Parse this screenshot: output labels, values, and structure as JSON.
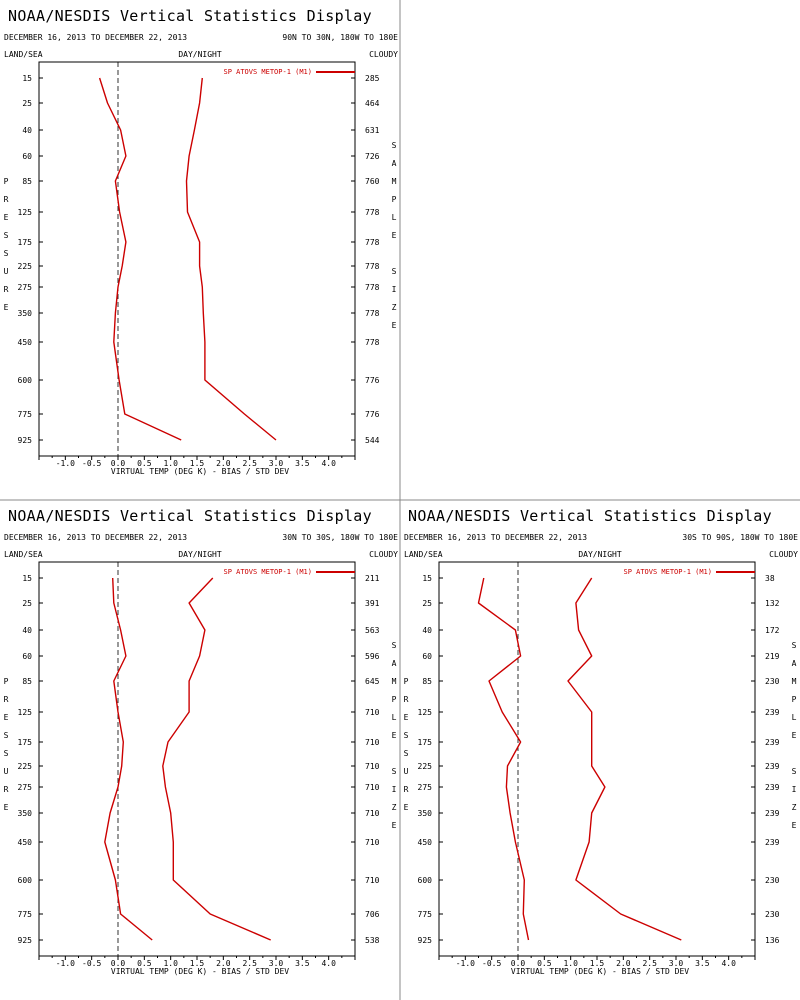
{
  "panels": [
    {
      "title": "NOAA/NESDIS Vertical Statistics Display",
      "date_range": "DECEMBER 16, 2013 TO DECEMBER 22, 2013",
      "region": "90N TO 30N, 180W TO 180E",
      "land_sea": "LAND/SEA",
      "day_night": "DAY/NIGHT",
      "cloudy": "CLOUDY",
      "y_axis_label": "PRESSURE",
      "right_axis_label": "SAMPLE SIZE",
      "legend": "SP ATOVS METOP-1 (M1)",
      "chart_data": {
        "type": "line",
        "xlabel": "VIRTUAL TEMP (DEG K) - BIAS / STD DEV",
        "ylabel": "PRESSURE",
        "xlim": [
          -1.5,
          4.5
        ],
        "xticks": [
          "-1.0",
          "-0.5",
          "0.0",
          "0.5",
          "1.0",
          "1.5",
          "2.0",
          "2.5",
          "3.0",
          "3.5",
          "4.0"
        ],
        "pressure_levels": [
          "15",
          "25",
          "40",
          "60",
          "85",
          "125",
          "175",
          "225",
          "275",
          "350",
          "450",
          "600",
          "775",
          "925"
        ],
        "sample_size": [
          "285",
          "464",
          "631",
          "726",
          "760",
          "778",
          "778",
          "778",
          "778",
          "778",
          "778",
          "776",
          "776",
          "544"
        ],
        "series": [
          {
            "name": "SP ATOVS METOP-1 (M1)",
            "stat": "bias",
            "values": [
              -0.35,
              -0.2,
              0.05,
              0.15,
              -0.05,
              0.03,
              0.15,
              0.08,
              0.0,
              -0.05,
              -0.08,
              0.02,
              0.13,
              1.2
            ]
          },
          {
            "name": "SP ATOVS METOP-1 (M1)",
            "stat": "std_dev",
            "values": [
              1.6,
              1.55,
              1.45,
              1.35,
              1.3,
              1.32,
              1.55,
              1.55,
              1.6,
              1.62,
              1.65,
              1.65,
              2.4,
              3.0
            ]
          }
        ]
      }
    },
    {
      "title": "NOAA/NESDIS Vertical Statistics Display",
      "date_range": "DECEMBER 16, 2013 TO DECEMBER 22, 2013",
      "region": "30N TO 30S, 180W TO 180E",
      "land_sea": "LAND/SEA",
      "day_night": "DAY/NIGHT",
      "cloudy": "CLOUDY",
      "y_axis_label": "PRESSURE",
      "right_axis_label": "SAMPLE SIZE",
      "legend": "SP ATOVS METOP-1 (M1)",
      "chart_data": {
        "type": "line",
        "xlabel": "VIRTUAL TEMP (DEG K) - BIAS / STD DEV",
        "ylabel": "PRESSURE",
        "xlim": [
          -1.5,
          4.5
        ],
        "xticks": [
          "-1.0",
          "-0.5",
          "0.0",
          "0.5",
          "1.0",
          "1.5",
          "2.0",
          "2.5",
          "3.0",
          "3.5",
          "4.0"
        ],
        "pressure_levels": [
          "15",
          "25",
          "40",
          "60",
          "85",
          "125",
          "175",
          "225",
          "275",
          "350",
          "450",
          "600",
          "775",
          "925"
        ],
        "sample_size": [
          "211",
          "391",
          "563",
          "596",
          "645",
          "710",
          "710",
          "710",
          "710",
          "710",
          "710",
          "710",
          "706",
          "538"
        ],
        "series": [
          {
            "name": "SP ATOVS METOP-1 (M1)",
            "stat": "bias",
            "values": [
              -0.1,
              -0.08,
              0.05,
              0.15,
              -0.08,
              0.0,
              0.1,
              0.07,
              0.0,
              -0.15,
              -0.25,
              -0.05,
              0.05,
              0.65
            ]
          },
          {
            "name": "SP ATOVS METOP-1 (M1)",
            "stat": "std_dev",
            "values": [
              1.8,
              1.35,
              1.65,
              1.55,
              1.35,
              1.35,
              0.95,
              0.85,
              0.9,
              1.0,
              1.05,
              1.05,
              1.75,
              2.9
            ]
          }
        ]
      }
    },
    {
      "title": "NOAA/NESDIS Vertical Statistics Display",
      "date_range": "DECEMBER 16, 2013 TO DECEMBER 22, 2013",
      "region": "30S TO 90S, 180W TO 180E",
      "land_sea": "LAND/SEA",
      "day_night": "DAY/NIGHT",
      "cloudy": "CLOUDY",
      "y_axis_label": "PRESSURE",
      "right_axis_label": "SAMPLE SIZE",
      "legend": "SP ATOVS METOP-1 (M1)",
      "chart_data": {
        "type": "line",
        "xlabel": "VIRTUAL TEMP (DEG K) - BIAS / STD DEV",
        "ylabel": "PRESSURE",
        "xlim": [
          -1.5,
          4.5
        ],
        "xticks": [
          "-1.0",
          "-0.5",
          "0.0",
          "0.5",
          "1.0",
          "1.5",
          "2.0",
          "2.5",
          "3.0",
          "3.5",
          "4.0"
        ],
        "pressure_levels": [
          "15",
          "25",
          "40",
          "60",
          "85",
          "125",
          "175",
          "225",
          "275",
          "350",
          "450",
          "600",
          "775",
          "925"
        ],
        "sample_size": [
          "38",
          "132",
          "172",
          "219",
          "230",
          "239",
          "239",
          "239",
          "239",
          "239",
          "239",
          "230",
          "230",
          "136"
        ],
        "series": [
          {
            "name": "SP ATOVS METOP-1 (M1)",
            "stat": "bias",
            "values": [
              -0.65,
              -0.75,
              -0.05,
              0.05,
              -0.55,
              -0.3,
              0.05,
              -0.2,
              -0.22,
              -0.15,
              -0.05,
              0.12,
              0.1,
              0.2
            ]
          },
          {
            "name": "SP ATOVS METOP-1 (M1)",
            "stat": "std_dev",
            "values": [
              1.4,
              1.1,
              1.15,
              1.4,
              0.95,
              1.4,
              1.4,
              1.4,
              1.65,
              1.4,
              1.35,
              1.1,
              1.95,
              3.1
            ]
          }
        ]
      }
    }
  ]
}
